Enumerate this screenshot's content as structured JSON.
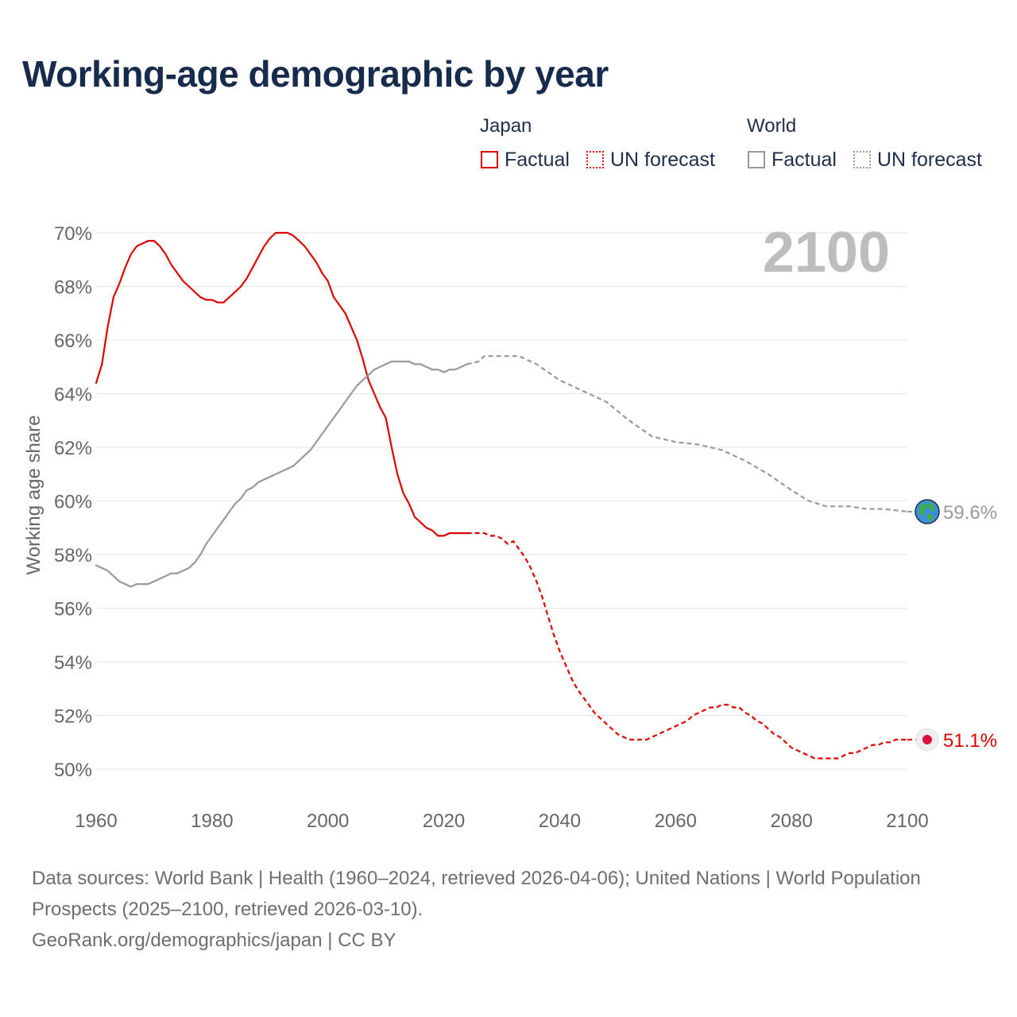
{
  "title": "Working-age demographic by year",
  "legend": {
    "japan_label": "Japan",
    "world_label": "World",
    "factual_label": "Factual",
    "forecast_label": "UN forecast"
  },
  "colors": {
    "japan": "#e00000",
    "world": "#999999",
    "grid": "#e6e6e6",
    "axis_text": "#666666",
    "year_watermark": "#bdbdbd"
  },
  "chart_data": {
    "type": "line",
    "ylabel": "Working age share",
    "xlim": [
      1960,
      2100
    ],
    "ylim": [
      49,
      71
    ],
    "x_ticks": [
      1960,
      1980,
      2000,
      2020,
      2040,
      2060,
      2080,
      2100
    ],
    "y_ticks": [
      50,
      52,
      54,
      56,
      58,
      60,
      62,
      64,
      66,
      68,
      70
    ],
    "y_tick_suffix": "%",
    "current_year": "2100",
    "series": [
      {
        "name": "Japan Factual",
        "country": "Japan",
        "style": "solid",
        "x": [
          1960,
          1961,
          1962,
          1963,
          1964,
          1965,
          1966,
          1967,
          1968,
          1969,
          1970,
          1971,
          1972,
          1973,
          1974,
          1975,
          1976,
          1977,
          1978,
          1979,
          1980,
          1981,
          1982,
          1983,
          1984,
          1985,
          1986,
          1987,
          1988,
          1989,
          1990,
          1991,
          1992,
          1993,
          1994,
          1995,
          1996,
          1997,
          1998,
          1999,
          2000,
          2001,
          2002,
          2003,
          2004,
          2005,
          2006,
          2007,
          2008,
          2009,
          2010,
          2011,
          2012,
          2013,
          2014,
          2015,
          2016,
          2017,
          2018,
          2019,
          2020,
          2021,
          2022,
          2023,
          2024
        ],
        "y": [
          64.4,
          65.1,
          66.5,
          67.6,
          68.1,
          68.7,
          69.2,
          69.5,
          69.6,
          69.7,
          69.7,
          69.5,
          69.2,
          68.8,
          68.5,
          68.2,
          68.0,
          67.8,
          67.6,
          67.5,
          67.5,
          67.4,
          67.4,
          67.6,
          67.8,
          68.0,
          68.3,
          68.7,
          69.1,
          69.5,
          69.8,
          70.0,
          70.0,
          70.0,
          69.9,
          69.7,
          69.5,
          69.2,
          68.9,
          68.5,
          68.2,
          67.6,
          67.3,
          67.0,
          66.5,
          66.0,
          65.3,
          64.5,
          64.0,
          63.5,
          63.1,
          62.0,
          61.0,
          60.3,
          59.9,
          59.4,
          59.2,
          59.0,
          58.9,
          58.7,
          58.7,
          58.8,
          58.8,
          58.8,
          58.8
        ]
      },
      {
        "name": "Japan UN forecast",
        "country": "Japan",
        "style": "dashed",
        "x": [
          2024,
          2025,
          2026,
          2027,
          2028,
          2029,
          2030,
          2031,
          2032,
          2033,
          2034,
          2035,
          2036,
          2037,
          2038,
          2039,
          2040,
          2041,
          2042,
          2043,
          2044,
          2045,
          2046,
          2047,
          2048,
          2049,
          2050,
          2051,
          2052,
          2053,
          2054,
          2055,
          2056,
          2057,
          2058,
          2059,
          2060,
          2061,
          2062,
          2063,
          2064,
          2065,
          2066,
          2067,
          2068,
          2069,
          2070,
          2071,
          2072,
          2073,
          2074,
          2075,
          2076,
          2077,
          2078,
          2079,
          2080,
          2081,
          2082,
          2083,
          2084,
          2085,
          2086,
          2087,
          2088,
          2089,
          2090,
          2091,
          2092,
          2093,
          2094,
          2095,
          2096,
          2097,
          2098,
          2099,
          2100
        ],
        "y": [
          58.8,
          58.8,
          58.8,
          58.8,
          58.7,
          58.7,
          58.6,
          58.4,
          58.5,
          58.2,
          57.9,
          57.5,
          57.0,
          56.4,
          55.7,
          55.0,
          54.4,
          53.9,
          53.4,
          53.0,
          52.7,
          52.4,
          52.1,
          51.9,
          51.7,
          51.5,
          51.3,
          51.2,
          51.1,
          51.1,
          51.1,
          51.1,
          51.2,
          51.3,
          51.4,
          51.5,
          51.6,
          51.7,
          51.8,
          52.0,
          52.1,
          52.2,
          52.3,
          52.3,
          52.4,
          52.4,
          52.3,
          52.3,
          52.1,
          52.0,
          51.8,
          51.7,
          51.5,
          51.3,
          51.2,
          51.0,
          50.8,
          50.7,
          50.6,
          50.5,
          50.4,
          50.4,
          50.4,
          50.4,
          50.4,
          50.5,
          50.6,
          50.6,
          50.7,
          50.8,
          50.9,
          50.9,
          51.0,
          51.0,
          51.1,
          51.1,
          51.1
        ]
      },
      {
        "name": "World Factual",
        "country": "World",
        "style": "solid",
        "x": [
          1960,
          1961,
          1962,
          1963,
          1964,
          1965,
          1966,
          1967,
          1968,
          1969,
          1970,
          1971,
          1972,
          1973,
          1974,
          1975,
          1976,
          1977,
          1978,
          1979,
          1980,
          1981,
          1982,
          1983,
          1984,
          1985,
          1986,
          1987,
          1988,
          1989,
          1990,
          1991,
          1992,
          1993,
          1994,
          1995,
          1996,
          1997,
          1998,
          1999,
          2000,
          2001,
          2002,
          2003,
          2004,
          2005,
          2006,
          2007,
          2008,
          2009,
          2010,
          2011,
          2012,
          2013,
          2014,
          2015,
          2016,
          2017,
          2018,
          2019,
          2020,
          2021,
          2022,
          2023,
          2024
        ],
        "y": [
          57.6,
          57.5,
          57.4,
          57.2,
          57.0,
          56.9,
          56.8,
          56.9,
          56.9,
          56.9,
          57.0,
          57.1,
          57.2,
          57.3,
          57.3,
          57.4,
          57.5,
          57.7,
          58.0,
          58.4,
          58.7,
          59.0,
          59.3,
          59.6,
          59.9,
          60.1,
          60.4,
          60.5,
          60.7,
          60.8,
          60.9,
          61.0,
          61.1,
          61.2,
          61.3,
          61.5,
          61.7,
          61.9,
          62.2,
          62.5,
          62.8,
          63.1,
          63.4,
          63.7,
          64.0,
          64.3,
          64.5,
          64.7,
          64.9,
          65.0,
          65.1,
          65.2,
          65.2,
          65.2,
          65.2,
          65.1,
          65.1,
          65.0,
          64.9,
          64.9,
          64.8,
          64.9,
          64.9,
          65.0,
          65.1
        ]
      },
      {
        "name": "World UN forecast",
        "country": "World",
        "style": "dashed",
        "x": [
          2024,
          2026,
          2027,
          2030,
          2033,
          2036,
          2040,
          2044,
          2048,
          2052,
          2056,
          2060,
          2064,
          2068,
          2072,
          2076,
          2080,
          2083,
          2086,
          2090,
          2093,
          2096,
          2100
        ],
        "y": [
          65.1,
          65.2,
          65.4,
          65.4,
          65.4,
          65.1,
          64.5,
          64.1,
          63.7,
          63.0,
          62.4,
          62.2,
          62.1,
          61.9,
          61.5,
          61.0,
          60.4,
          60.0,
          59.8,
          59.8,
          59.7,
          59.7,
          59.6
        ]
      }
    ],
    "end_labels": {
      "japan": "51.1%",
      "world": "59.6%"
    },
    "end_values": {
      "japan": 51.1,
      "world": 59.6
    }
  },
  "footer": {
    "sources": "Data sources: World Bank | Health (1960–2024, retrieved 2026-04-06); United Nations | World Population Prospects (2025–2100, retrieved 2026-03-10).",
    "credit": "GeoRank.org/demographics/japan | CC BY"
  }
}
